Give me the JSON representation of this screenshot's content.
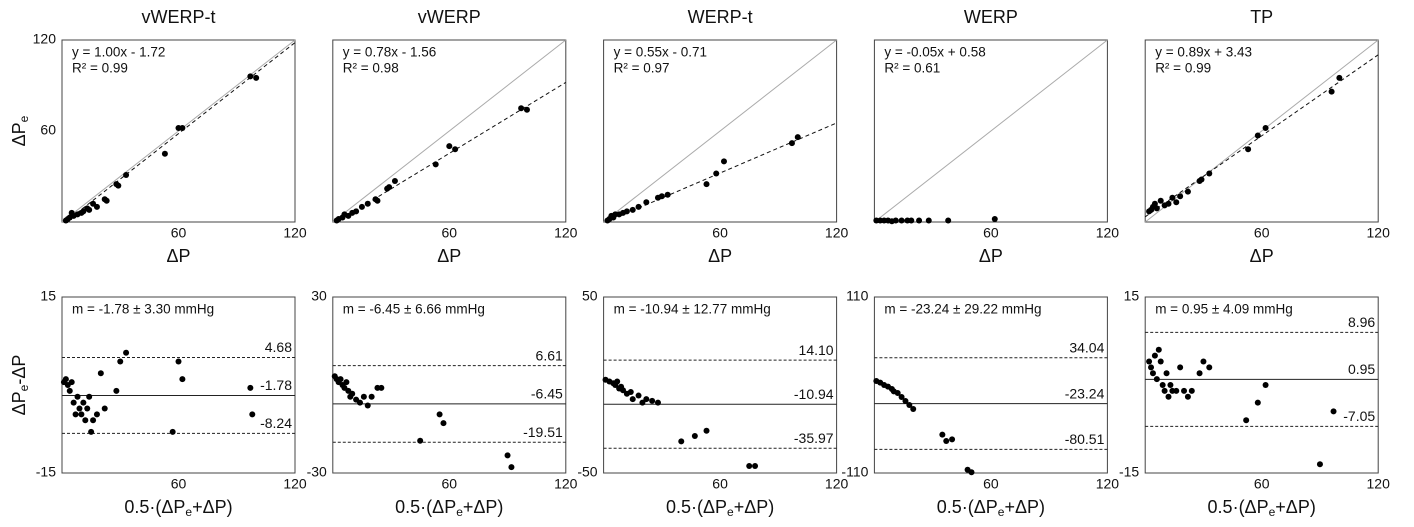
{
  "chart_data": [
    {
      "type": "scatter",
      "title": "vWERP-t",
      "xlabel": [
        "ΔP"
      ],
      "ylabel": [
        "ΔP",
        "e"
      ],
      "xlim": [
        0,
        120
      ],
      "ylim": [
        0,
        120
      ],
      "xticks": [
        60,
        120
      ],
      "yticks": [
        60,
        120
      ],
      "annotations": [
        "y = 1.00x - 1.72",
        "R² = 0.99"
      ],
      "identity_line": true,
      "fit_line": {
        "slope": 1,
        "intercept": -1.72
      },
      "x": [
        2,
        3,
        4,
        5,
        6,
        8,
        10,
        11,
        13,
        14,
        16,
        18,
        22,
        23,
        28,
        29,
        33,
        53,
        60,
        62,
        97,
        100
      ],
      "values": [
        1,
        2,
        3,
        6,
        4,
        5,
        6,
        7,
        9,
        8,
        12,
        10,
        15,
        14,
        25,
        24,
        31,
        45,
        62,
        62,
        96,
        95
      ]
    },
    {
      "type": "scatter",
      "title": "vWERP",
      "xlabel": [
        "ΔP"
      ],
      "xlim": [
        0,
        120
      ],
      "ylim": [
        0,
        120
      ],
      "xticks": [
        60,
        120
      ],
      "annotations": [
        "y = 0.78x - 1.56",
        "R² = 0.98"
      ],
      "identity_line": true,
      "fit_line": {
        "slope": 0.78,
        "intercept": -1.56
      },
      "x": [
        2,
        3,
        5,
        6,
        8,
        10,
        12,
        15,
        18,
        22,
        23,
        28,
        29,
        32,
        53,
        60,
        63,
        97,
        100
      ],
      "values": [
        1,
        2,
        3,
        5,
        4,
        6,
        7,
        10,
        12,
        15,
        14,
        22,
        23,
        27,
        38,
        50,
        48,
        75,
        74
      ]
    },
    {
      "type": "scatter",
      "title": "WERP-t",
      "xlabel": [
        "ΔP"
      ],
      "xlim": [
        0,
        120
      ],
      "ylim": [
        0,
        120
      ],
      "xticks": [
        60,
        120
      ],
      "annotations": [
        "y = 0.55x - 0.71",
        "R² = 0.97"
      ],
      "identity_line": true,
      "fit_line": {
        "slope": 0.55,
        "intercept": -0.71
      },
      "x": [
        2,
        3,
        4,
        5,
        6,
        8,
        10,
        12,
        15,
        18,
        22,
        28,
        30,
        33,
        53,
        58,
        62,
        97,
        100
      ],
      "values": [
        1,
        2,
        4,
        3,
        5,
        5,
        6,
        7,
        8,
        10,
        13,
        16,
        17,
        18,
        25,
        32,
        40,
        52,
        56
      ]
    },
    {
      "type": "scatter",
      "title": "WERP",
      "xlabel": [
        "ΔP"
      ],
      "xlim": [
        0,
        120
      ],
      "ylim": [
        0,
        120
      ],
      "xticks": [
        60,
        120
      ],
      "annotations": [
        "y = -0.05x + 0.58",
        "R² = 0.61"
      ],
      "identity_line": true,
      "x": [
        1,
        3,
        5,
        7,
        9,
        11,
        14,
        17,
        19,
        23,
        28,
        38,
        62
      ],
      "values": [
        1,
        1,
        1,
        1,
        0.5,
        1,
        1,
        1,
        1,
        1,
        1,
        1,
        2
      ]
    },
    {
      "type": "scatter",
      "title": "TP",
      "xlabel": [
        "ΔP"
      ],
      "xlim": [
        0,
        120
      ],
      "ylim": [
        0,
        120
      ],
      "xticks": [
        60,
        120
      ],
      "annotations": [
        "y = 0.89x + 3.43",
        "R² = 0.99"
      ],
      "identity_line": true,
      "fit_line": {
        "slope": 0.89,
        "intercept": 3.43
      },
      "x": [
        2,
        3,
        4,
        5,
        6,
        8,
        10,
        12,
        14,
        16,
        18,
        22,
        28,
        29,
        33,
        53,
        58,
        62,
        96,
        100
      ],
      "values": [
        7,
        8,
        10,
        12,
        9,
        14,
        11,
        12,
        16,
        13,
        17,
        20,
        27,
        28,
        32,
        48,
        57,
        62,
        86,
        95
      ]
    },
    {
      "type": "scatter",
      "xlabel": [
        "0.5·(ΔP",
        "e",
        "+ΔP)"
      ],
      "ylabel": [
        "ΔP",
        "e",
        "-ΔP"
      ],
      "xlim": [
        0,
        120
      ],
      "ylim": [
        -15,
        15
      ],
      "xticks": [
        60,
        120
      ],
      "yticks": [
        -15,
        15
      ],
      "annotations": [
        "m = -1.78 ± 3.30 mmHg"
      ],
      "hlines": {
        "values": [
          4.68,
          -1.78,
          -8.24
        ],
        "styles": [
          "dashed",
          "solid",
          "dashed"
        ]
      },
      "x": [
        1,
        2,
        3,
        4,
        5,
        6,
        7,
        8,
        9,
        10,
        11,
        12,
        13,
        14,
        15,
        16,
        18,
        20,
        22,
        28,
        30,
        33,
        57,
        60,
        62,
        97,
        98
      ],
      "values": [
        0.5,
        1,
        0,
        -1,
        0.5,
        -3,
        -5,
        -2,
        -4,
        -5,
        -3,
        -6,
        -4,
        -2,
        -8,
        -6,
        -5,
        2,
        -4,
        -1,
        4,
        5.5,
        -8,
        4,
        1,
        -0.5,
        -5
      ]
    },
    {
      "type": "scatter",
      "xlabel": [
        "0.5·(ΔP",
        "e",
        "+ΔP)"
      ],
      "xlim": [
        0,
        120
      ],
      "ylim": [
        -30,
        30
      ],
      "xticks": [
        60,
        120
      ],
      "yticks": [
        -30,
        30
      ],
      "annotations": [
        "m = -6.45 ± 6.66 mmHg"
      ],
      "hlines": {
        "values": [
          6.61,
          -6.45,
          -19.51
        ],
        "styles": [
          "dashed",
          "solid",
          "dashed"
        ]
      },
      "x": [
        1,
        2,
        3,
        4,
        5,
        6,
        7,
        8,
        9,
        10,
        12,
        14,
        16,
        18,
        20,
        23,
        25,
        45,
        55,
        57,
        90,
        92
      ],
      "values": [
        3,
        2,
        1,
        2,
        0,
        -1,
        1,
        -2,
        -4,
        -3,
        -5,
        -6,
        -4,
        -7,
        -4,
        -1,
        -1,
        -19,
        -10,
        -13,
        -24,
        -28
      ]
    },
    {
      "type": "scatter",
      "xlabel": [
        "0.5·(ΔP",
        "e",
        "+ΔP)"
      ],
      "xlim": [
        0,
        120
      ],
      "ylim": [
        -50,
        50
      ],
      "xticks": [
        60,
        120
      ],
      "yticks": [
        -50,
        50
      ],
      "annotations": [
        "m = -10.94 ± 12.77 mmHg"
      ],
      "hlines": {
        "values": [
          14.1,
          -10.94,
          -35.97
        ],
        "value_labels": [
          "14.10",
          "-10.94",
          "-35.97"
        ],
        "styles": [
          "dashed",
          "solid",
          "dashed"
        ]
      },
      "x": [
        1,
        3,
        5,
        6,
        7,
        8,
        9,
        10,
        12,
        14,
        15,
        18,
        20,
        22,
        25,
        28,
        40,
        47,
        53,
        75,
        78
      ],
      "values": [
        3,
        2,
        1,
        0,
        2,
        -2,
        -1,
        -3,
        -5,
        -4,
        -8,
        -6,
        -10,
        -8,
        -9,
        -10,
        -32,
        -29,
        -26,
        -46,
        -46
      ]
    },
    {
      "type": "scatter",
      "xlabel": [
        "0.5·(ΔP",
        "e",
        "+ΔP)"
      ],
      "xlim": [
        0,
        120
      ],
      "ylim": [
        -110,
        110
      ],
      "xticks": [
        60,
        120
      ],
      "yticks": [
        -110,
        110
      ],
      "annotations": [
        "m = -23.24 ± 29.22 mmHg"
      ],
      "hlines": {
        "values": [
          34.04,
          -23.24,
          -80.51
        ],
        "styles": [
          "dashed",
          "solid",
          "dashed"
        ]
      },
      "x": [
        1,
        3,
        5,
        7,
        9,
        10,
        12,
        14,
        16,
        18,
        20,
        35,
        37,
        40,
        48,
        50
      ],
      "values": [
        5,
        3,
        0,
        -2,
        -5,
        -8,
        -10,
        -15,
        -20,
        -25,
        -30,
        -62,
        -70,
        -68,
        -106,
        -109
      ]
    },
    {
      "type": "scatter",
      "xlabel": [
        "0.5·(ΔP",
        "e",
        "+ΔP)"
      ],
      "xlim": [
        0,
        120
      ],
      "ylim": [
        -15,
        15
      ],
      "xticks": [
        60,
        120
      ],
      "yticks": [
        -15,
        15
      ],
      "annotations": [
        "m = 0.95 ± 4.09 mmHg"
      ],
      "hlines": {
        "values": [
          8.96,
          0.95,
          -7.05
        ],
        "styles": [
          "dashed",
          "solid",
          "dashed"
        ]
      },
      "x": [
        2,
        3,
        4,
        5,
        6,
        7,
        8,
        9,
        10,
        11,
        12,
        13,
        14,
        16,
        18,
        20,
        22,
        24,
        28,
        30,
        33,
        52,
        58,
        62,
        90,
        97
      ],
      "values": [
        4,
        3,
        2,
        5,
        1,
        6,
        4,
        0,
        -1,
        2,
        -2,
        0,
        -1,
        -1,
        3,
        -1,
        -2,
        -1,
        2,
        4,
        3,
        -6,
        -3,
        0,
        -13.5,
        -4.5
      ]
    }
  ]
}
